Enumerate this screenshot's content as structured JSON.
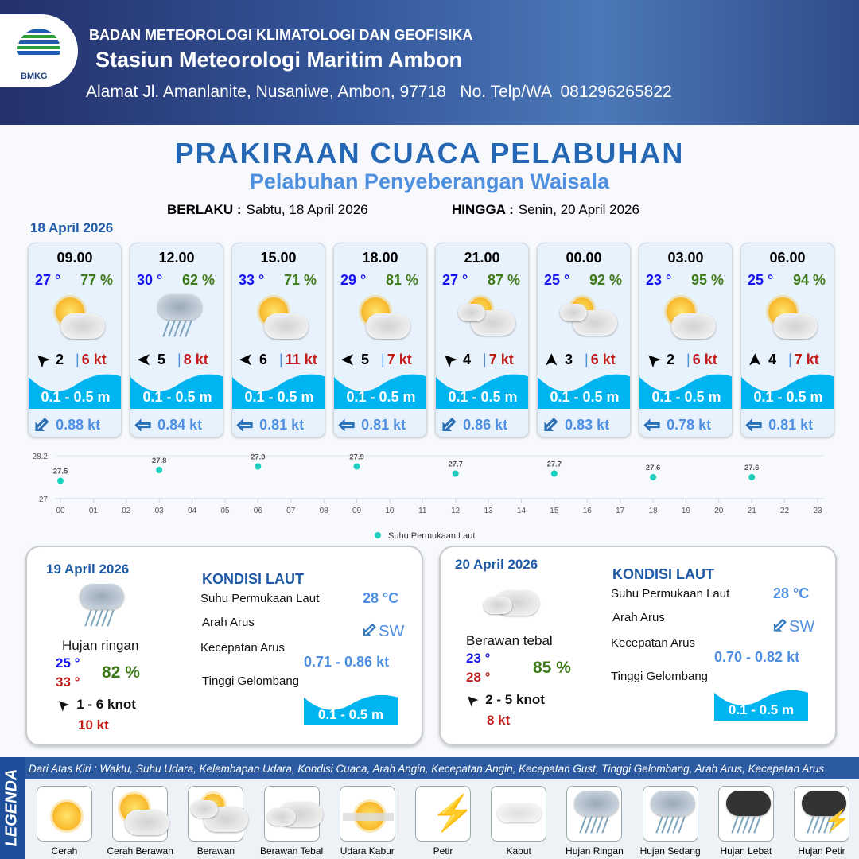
{
  "header": {
    "agency": "BADAN METEOROLOGI KLIMATOLOGI DAN GEOFISIKA",
    "station": "Stasiun Meteorologi Maritim Ambon",
    "address": "Alamat Jl. Amanlanite, Nusaniwe, Ambon, 97718   No. Telp/WA  081296265822",
    "logo_text": "BMKG"
  },
  "title": "PRAKIRAAN CUACA PELABUHAN",
  "subtitle": "Pelabuhan Penyeberangan Waisala",
  "validity": {
    "from_label": "BERLAKU :",
    "from": "Sabtu, 18 April 2026",
    "to_label": "HINGGA :",
    "to": "Senin, 20 April 2026"
  },
  "day1_date": "18 April 2026",
  "cards": [
    {
      "time": "09.00",
      "temp": "27 °",
      "hum": "77 %",
      "icon": "cerah-berawan",
      "wind_dir": "NE",
      "wind_deg": 225,
      "wind": "2",
      "gust": "6 kt",
      "wave": "0.1 - 0.5 m",
      "cur_deg": -45,
      "current": "0.88 kt"
    },
    {
      "time": "12.00",
      "temp": "30 °",
      "hum": "62 %",
      "icon": "hujan-ringan",
      "wind_deg": 180,
      "wind": "5",
      "gust": "8 kt",
      "wave": "0.1 - 0.5 m",
      "cur_deg": 0,
      "current": "0.84 kt"
    },
    {
      "time": "15.00",
      "temp": "33 °",
      "hum": "71 %",
      "icon": "cerah-berawan",
      "wind_deg": 180,
      "wind": "6",
      "gust": "11 kt",
      "wave": "0.1 - 0.5 m",
      "cur_deg": 0,
      "current": "0.81 kt"
    },
    {
      "time": "18.00",
      "temp": "29 °",
      "hum": "81 %",
      "icon": "cerah-berawan",
      "wind_deg": 180,
      "wind": "5",
      "gust": "7 kt",
      "wave": "0.1 - 0.5 m",
      "cur_deg": 0,
      "current": "0.81 kt"
    },
    {
      "time": "21.00",
      "temp": "27 °",
      "hum": "87 %",
      "icon": "berawan",
      "wind_deg": 225,
      "wind": "4",
      "gust": "7 kt",
      "wave": "0.1 - 0.5 m",
      "cur_deg": -45,
      "current": "0.86 kt"
    },
    {
      "time": "00.00",
      "temp": "25 °",
      "hum": "92 %",
      "icon": "berawan",
      "wind_deg": 270,
      "wind": "3",
      "gust": "6 kt",
      "wave": "0.1 - 0.5 m",
      "cur_deg": -45,
      "current": "0.83 kt"
    },
    {
      "time": "03.00",
      "temp": "23 °",
      "hum": "95 %",
      "icon": "cerah-berawan",
      "wind_deg": 225,
      "wind": "2",
      "gust": "6 kt",
      "wave": "0.1 - 0.5 m",
      "cur_deg": 0,
      "current": "0.78 kt"
    },
    {
      "time": "06.00",
      "temp": "25 °",
      "hum": "94 %",
      "icon": "cerah-berawan",
      "wind_deg": 270,
      "wind": "4",
      "gust": "7 kt",
      "wave": "0.1 - 0.5 m",
      "cur_deg": 0,
      "current": "0.81 kt"
    }
  ],
  "chart_data": {
    "type": "scatter",
    "legend": "Suhu Permukaan Laut",
    "legend_position": "bottom",
    "x_ticks": [
      "00",
      "01",
      "02",
      "03",
      "04",
      "05",
      "06",
      "07",
      "08",
      "09",
      "10",
      "11",
      "12",
      "13",
      "14",
      "15",
      "16",
      "17",
      "18",
      "19",
      "20",
      "21",
      "22",
      "23"
    ],
    "y_ticks": [
      "28.2",
      "27"
    ],
    "ylim": [
      27,
      28.2
    ],
    "x": [
      0,
      3,
      6,
      9,
      12,
      15,
      18,
      21
    ],
    "values": [
      27.5,
      27.8,
      27.9,
      27.9,
      27.7,
      27.7,
      27.6,
      27.6
    ],
    "labels": [
      "27.5",
      "27.8",
      "27.9",
      "27.9",
      "27.7",
      "27.7",
      "27.6",
      "27.6"
    ],
    "color": "#1ccfbf"
  },
  "days": [
    {
      "date": "19 April 2026",
      "cond": "Hujan ringan",
      "tmin": "25 °",
      "tmax": "33 °",
      "hum": "82 %",
      "wind": "1  - 6 knot",
      "gust": "10 kt",
      "kondisi": "KONDISI LAUT",
      "sst_label": "Suhu Permukaan Laut",
      "sst": "28 °C",
      "arah_label": "Arah Arus",
      "arah": "SW",
      "kec_label": "Kecepatan Arus",
      "kec": "0.71 - 0.86 kt",
      "tg_label": "Tinggi Gelombang",
      "tg": "0.1 - 0.5 m"
    },
    {
      "date": "20 April 2026",
      "cond": "Berawan tebal",
      "tmin": "23 °",
      "tmax": "28 °",
      "hum": "85 %",
      "wind": "2  - 5 knot",
      "gust": "8 kt",
      "kondisi": "KONDISI LAUT",
      "sst_label": "Suhu Permukaan Laut",
      "sst": "28 °C",
      "arah_label": "Arah Arus",
      "arah": "SW",
      "kec_label": "Kecepatan Arus",
      "kec": "0.70 - 0.82 kt",
      "tg_label": "Tinggi Gelombang",
      "tg": "0.1 - 0.5 m"
    }
  ],
  "legend": {
    "side": "LEGENDA",
    "desc": "Dari Atas Kiri : Waktu, Suhu Udara, Kelembapan Udara, Kondisi Cuaca, Arah Angin, Kecepatan Angin, Kecepatan Gust, Tinggi Gelombang, Arah Arus, Kecepatan Arus",
    "items": [
      "Cerah",
      "Cerah Berawan",
      "Berawan",
      "Berawan Tebal",
      "Udara Kabur",
      "Petir",
      "Kabut",
      "Hujan Ringan",
      "Hujan Sedang",
      "Hujan Lebat",
      "Hujan Petir"
    ]
  },
  "colors": {
    "temp": "#1515f0",
    "hum": "#3f7a1a",
    "gust": "#c41c1c",
    "wave": "#00b4f0",
    "title": "#2467b5"
  }
}
